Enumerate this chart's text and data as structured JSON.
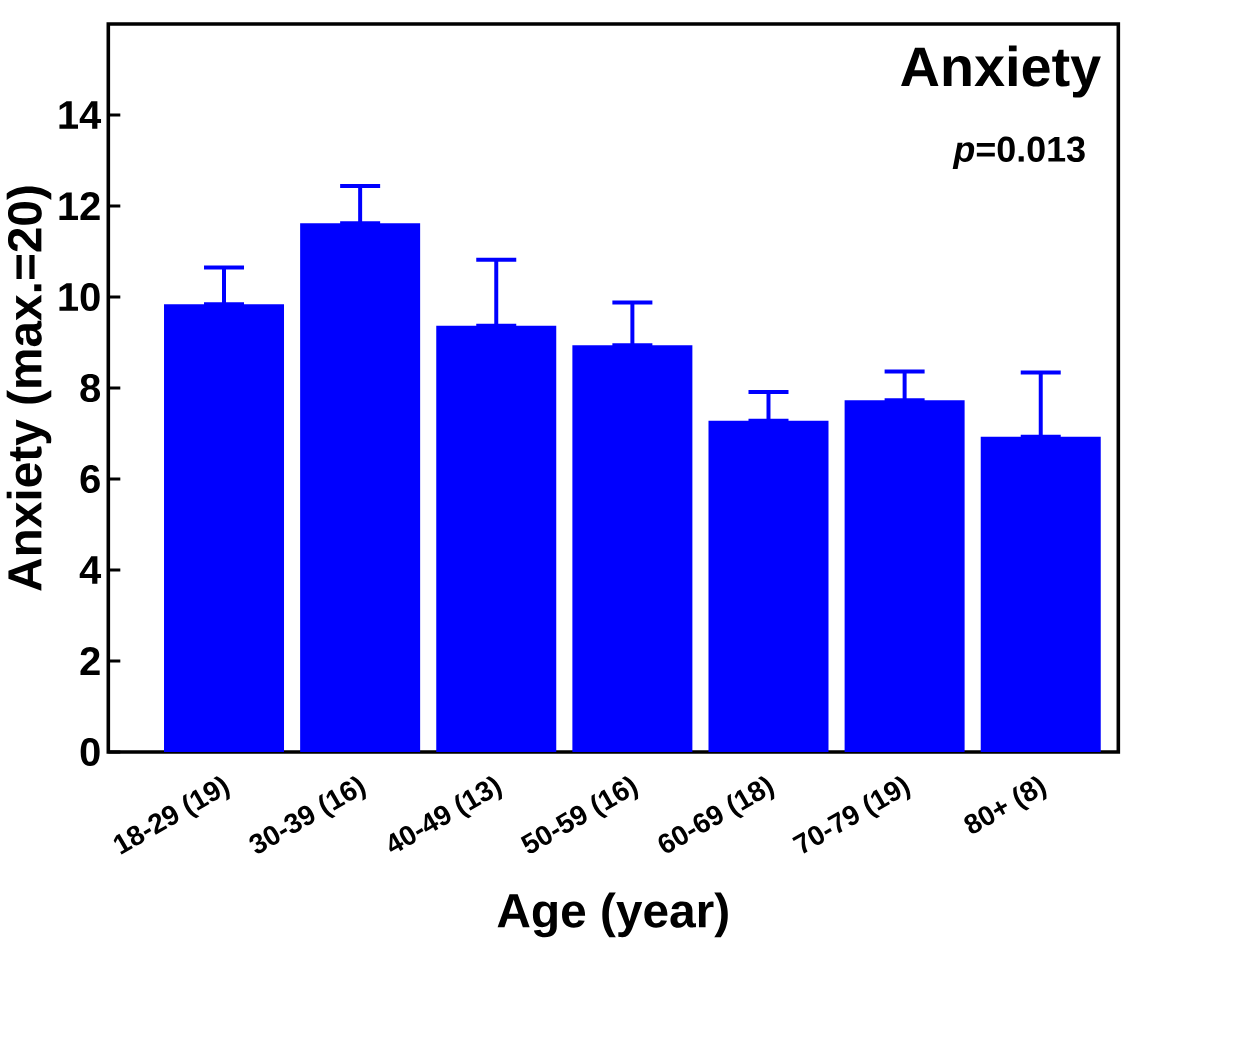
{
  "chart_data": {
    "type": "bar",
    "title": "Anxiety",
    "xlabel": "Age (year)",
    "ylabel": "Anxiety (max.=20)",
    "annotations": [
      "*p*=0.013"
    ],
    "categories": [
      "18-29 (19)",
      "30-39 (16)",
      "40-49 (13)",
      "50-59 (16)",
      "60-69 (18)",
      "70-79 (19)",
      "80+ (8)"
    ],
    "values": [
      9.84,
      11.62,
      9.37,
      8.94,
      7.28,
      7.73,
      6.93
    ],
    "errors": [
      [
        9.84,
        10.65
      ],
      [
        11.62,
        12.44
      ],
      [
        9.37,
        10.82
      ],
      [
        8.94,
        9.88
      ],
      [
        7.28,
        7.91
      ],
      [
        7.73,
        8.36
      ],
      [
        6.93,
        8.34
      ]
    ],
    "color": "#0000ff",
    "ylim": [
      0,
      16
    ],
    "yticks": [
      0,
      2,
      4,
      6,
      8,
      10,
      12,
      14
    ]
  }
}
